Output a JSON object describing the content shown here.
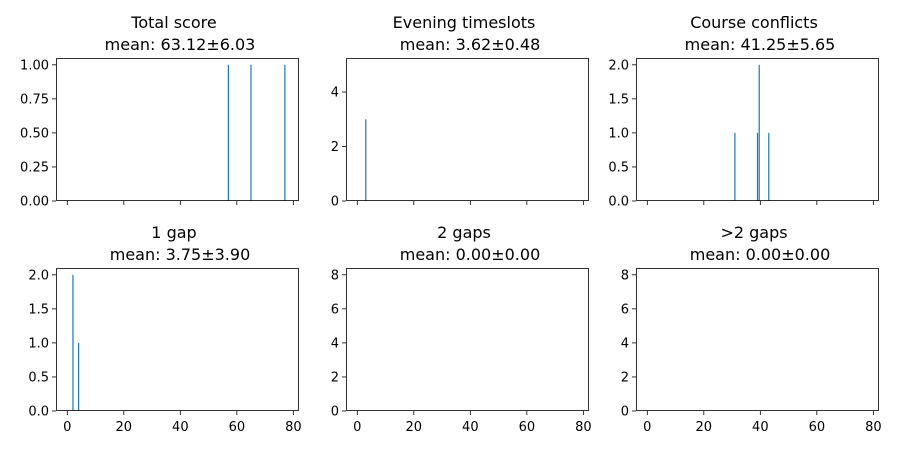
{
  "colors": {
    "bar": "#1f77b4",
    "axis": "#000000",
    "background": "#ffffff"
  },
  "chart_data": [
    {
      "type": "bar",
      "title": "Total score",
      "subtitle": "mean: 63.12±6.03",
      "xlabel": "",
      "ylabel": "",
      "xlim": [
        -4,
        82
      ],
      "ylim": [
        0,
        1.05
      ],
      "xticks": [
        0,
        20,
        40,
        60,
        80
      ],
      "xtick_labels": [],
      "yticks": [
        0.0,
        0.25,
        0.5,
        0.75,
        1.0
      ],
      "ytick_labels": [
        "0.00",
        "0.25",
        "0.50",
        "0.75",
        "1.00"
      ],
      "bars": [
        {
          "x": 57,
          "y": 1
        },
        {
          "x": 65,
          "y": 1
        },
        {
          "x": 77,
          "y": 1
        }
      ]
    },
    {
      "type": "bar",
      "title": "Evening timeslots",
      "subtitle": "mean: 3.62±0.48",
      "xlabel": "",
      "ylabel": "",
      "xlim": [
        -4,
        82
      ],
      "ylim": [
        0,
        5.25
      ],
      "xticks": [
        0,
        20,
        40,
        60,
        80
      ],
      "xtick_labels": [],
      "yticks": [
        0,
        2,
        4
      ],
      "ytick_labels": [
        "0",
        "2",
        "4"
      ],
      "bars": [
        {
          "x": 3,
          "y": 3
        }
      ]
    },
    {
      "type": "bar",
      "title": "Course conflicts",
      "subtitle": "mean: 41.25±5.65",
      "xlabel": "",
      "ylabel": "",
      "xlim": [
        -4,
        82
      ],
      "ylim": [
        0,
        2.1
      ],
      "xticks": [
        0,
        20,
        40,
        60,
        80
      ],
      "xtick_labels": [],
      "yticks": [
        0.0,
        0.5,
        1.0,
        1.5,
        2.0
      ],
      "ytick_labels": [
        "0.0",
        "0.5",
        "1.0",
        "1.5",
        "2.0"
      ],
      "bars": [
        {
          "x": 31,
          "y": 1
        },
        {
          "x": 39,
          "y": 1
        },
        {
          "x": 39.6,
          "y": 2
        },
        {
          "x": 43,
          "y": 1
        }
      ]
    },
    {
      "type": "bar",
      "title": "1 gap",
      "subtitle": "mean: 3.75±3.90",
      "xlabel": "",
      "ylabel": "",
      "xlim": [
        -4,
        82
      ],
      "ylim": [
        0,
        2.1
      ],
      "xticks": [
        0,
        20,
        40,
        60,
        80
      ],
      "xtick_labels": [
        "0",
        "20",
        "40",
        "60",
        "80"
      ],
      "yticks": [
        0.0,
        0.5,
        1.0,
        1.5,
        2.0
      ],
      "ytick_labels": [
        "0.0",
        "0.5",
        "1.0",
        "1.5",
        "2.0"
      ],
      "bars": [
        {
          "x": 2,
          "y": 2
        },
        {
          "x": 4,
          "y": 1
        }
      ]
    },
    {
      "type": "bar",
      "title": "2 gaps",
      "subtitle": "mean: 0.00±0.00",
      "xlabel": "",
      "ylabel": "",
      "xlim": [
        -4,
        82
      ],
      "ylim": [
        0,
        8.4
      ],
      "xticks": [
        0,
        20,
        40,
        60,
        80
      ],
      "xtick_labels": [
        "0",
        "20",
        "40",
        "60",
        "80"
      ],
      "yticks": [
        0,
        2,
        4,
        6,
        8
      ],
      "ytick_labels": [
        "0",
        "2",
        "4",
        "6",
        "8"
      ],
      "bars": []
    },
    {
      "type": "bar",
      "title": ">2 gaps",
      "subtitle": "mean: 0.00±0.00",
      "xlabel": "",
      "ylabel": "",
      "xlim": [
        -4,
        82
      ],
      "ylim": [
        0,
        8.4
      ],
      "xticks": [
        0,
        20,
        40,
        60,
        80
      ],
      "xtick_labels": [
        "0",
        "20",
        "40",
        "60",
        "80"
      ],
      "yticks": [
        0,
        2,
        4,
        6,
        8
      ],
      "ytick_labels": [
        "0",
        "2",
        "4",
        "6",
        "8"
      ],
      "bars": []
    }
  ]
}
